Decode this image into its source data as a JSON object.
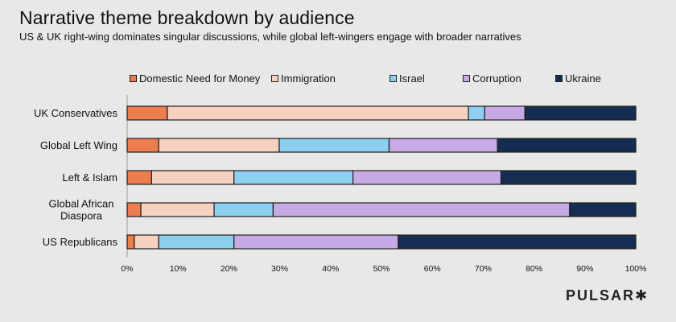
{
  "title": "Narrative theme breakdown by audience",
  "subtitle": "US & UK right-wing dominates singular discussions, while global left-wingers engage with broader narratives",
  "logo": "PULSAR✱",
  "chart_data": {
    "type": "bar",
    "orientation": "horizontal",
    "stacked": true,
    "normalized": true,
    "title": "Narrative theme breakdown by audience",
    "subtitle": "US & UK right-wing dominates singular discussions, while global left-wingers engage with broader narratives",
    "xlabel": "",
    "ylabel": "",
    "xlim": [
      0,
      100
    ],
    "x_ticks": [
      "0%",
      "10%",
      "20%",
      "30%",
      "40%",
      "50%",
      "60%",
      "70%",
      "80%",
      "90%",
      "100%"
    ],
    "grid": false,
    "legend_position": "top",
    "categories": [
      [
        "UK Conservatives"
      ],
      [
        "Global Left Wing"
      ],
      [
        "Left & Islam"
      ],
      [
        "Global African",
        "Diaspora"
      ],
      [
        "US Republicans"
      ]
    ],
    "category_names": [
      "UK Conservatives",
      "Global Left Wing",
      "Left & Islam",
      "Global African Diaspora",
      "US Republicans"
    ],
    "series": [
      {
        "name": "Domestic Need for Money",
        "color": "#ec7d4f",
        "values": [
          7.9,
          6.2,
          4.8,
          2.7,
          1.4
        ]
      },
      {
        "name": "Immigration",
        "color": "#f7d1c0",
        "values": [
          59.2,
          23.7,
          16.2,
          14.4,
          4.8
        ]
      },
      {
        "name": "Israel",
        "color": "#8ccfee",
        "values": [
          3.2,
          21.6,
          23.4,
          11.6,
          14.8
        ]
      },
      {
        "name": "Corruption",
        "color": "#c7a9e6",
        "values": [
          7.9,
          21.3,
          29.1,
          58.3,
          32.3
        ]
      },
      {
        "name": "Ukraine",
        "color": "#152d52",
        "values": [
          21.8,
          27.2,
          26.5,
          13.0,
          46.7
        ]
      }
    ]
  }
}
